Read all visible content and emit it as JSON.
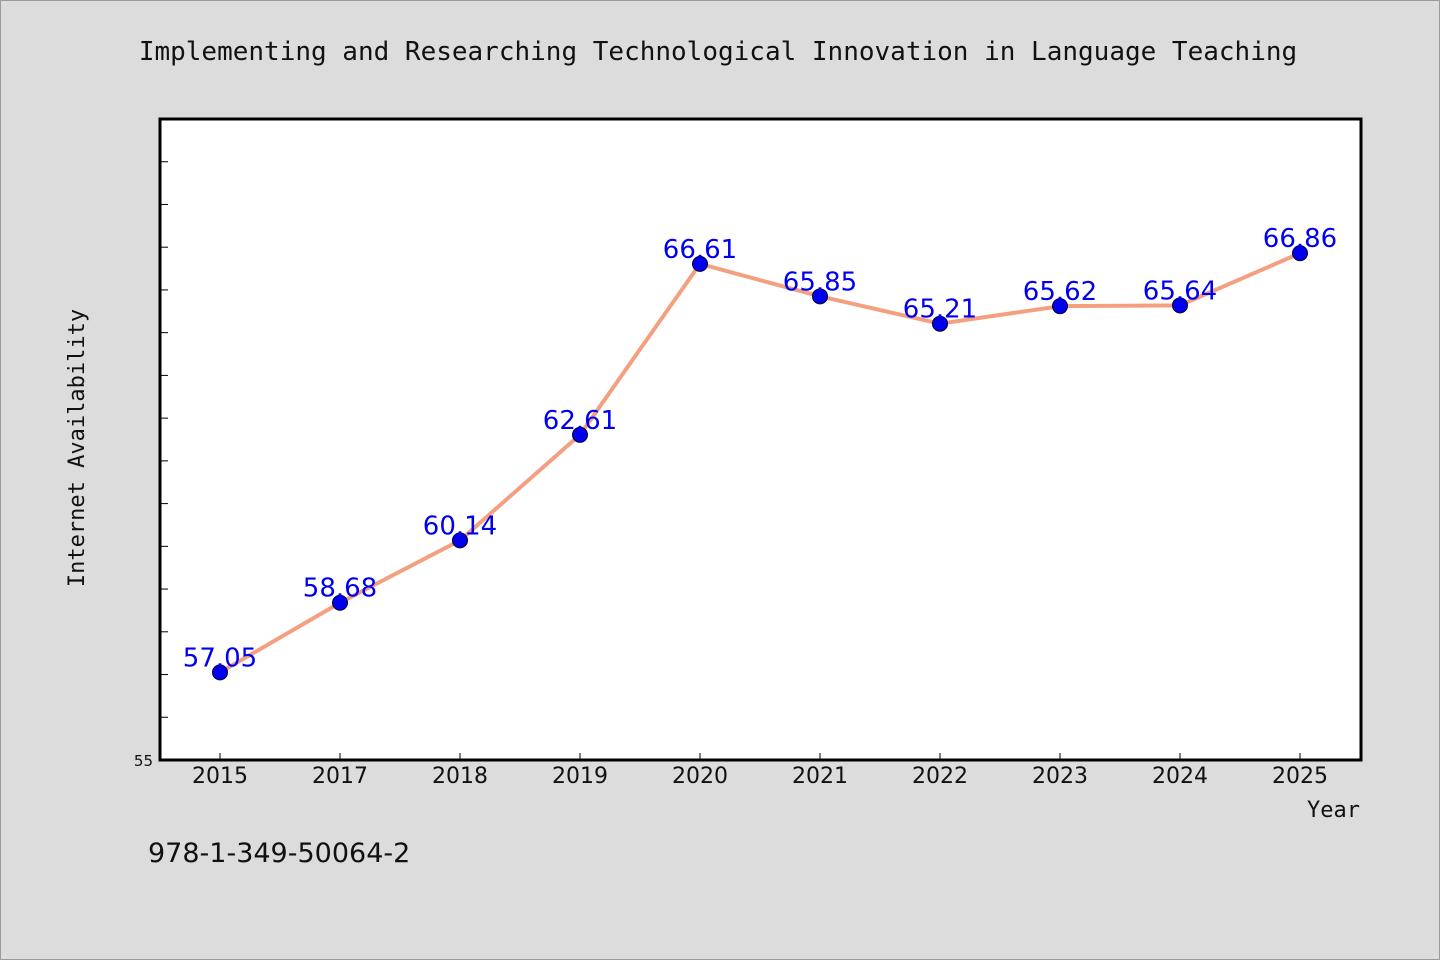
{
  "chart_data": {
    "type": "line",
    "title": "Implementing and Researching Technological Innovation in Language Teaching",
    "xlabel": "Year",
    "ylabel": "Internet Availability",
    "categories": [
      "2015",
      "2017",
      "2018",
      "2019",
      "2020",
      "2021",
      "2022",
      "2023",
      "2024",
      "2025"
    ],
    "series": [
      {
        "values": [
          57.05,
          58.68,
          60.14,
          62.61,
          66.61,
          65.85,
          65.21,
          65.62,
          65.64,
          66.86
        ],
        "line_color": "#f4a080",
        "marker_color": "#0000ee",
        "label_color": "#0000ee"
      }
    ],
    "ylim": [
      55,
      70
    ],
    "y_tick_step": 1,
    "y_visible_tick_labels": [
      "55"
    ],
    "grid": false,
    "legend": "none"
  },
  "footer": {
    "isbn": "978-1-349-50064-2"
  }
}
